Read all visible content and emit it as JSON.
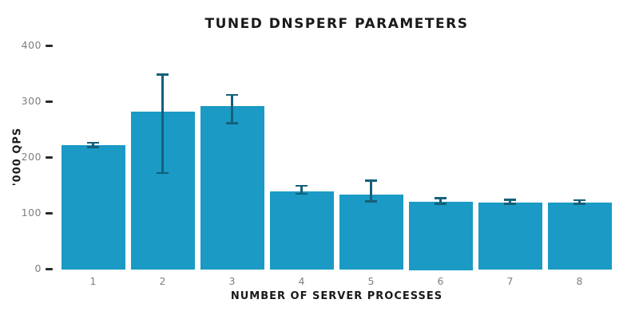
{
  "chart_data": {
    "type": "bar",
    "title": "TUNED DNSPERF PARAMETERS",
    "xlabel": "NUMBER OF SERVER PROCESSES",
    "ylabel": "'000 QPS",
    "categories": [
      "1",
      "2",
      "3",
      "4",
      "5",
      "6",
      "7",
      "8"
    ],
    "values": [
      222,
      282,
      292,
      139,
      133,
      120,
      119,
      119
    ],
    "error_low": [
      218,
      172,
      261,
      135,
      121,
      117,
      117,
      117
    ],
    "error_high": [
      226,
      348,
      312,
      149,
      158,
      127,
      124,
      123
    ],
    "yticks": [
      0,
      100,
      200,
      300,
      400
    ],
    "ylim": [
      0,
      400
    ],
    "grid": false,
    "legend": null,
    "colors": {
      "bar": "#1a9ac4",
      "error_bar": "#15607a",
      "tick_label": "#7f7f7f",
      "tick_mark": "#2a2a2a",
      "text": "#1a1a1a",
      "background": "#ffffff"
    }
  }
}
